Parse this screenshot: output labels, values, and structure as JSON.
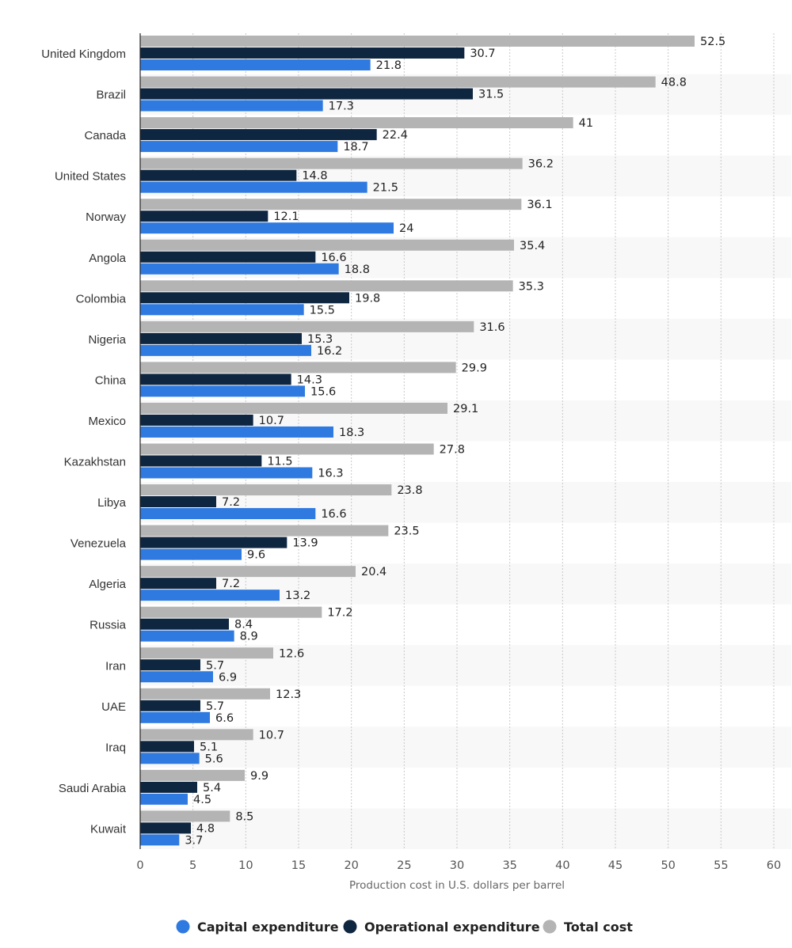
{
  "chart_data": {
    "type": "bar",
    "orientation": "horizontal",
    "categories": [
      "United Kingdom",
      "Brazil",
      "Canada",
      "United States",
      "Norway",
      "Angola",
      "Colombia",
      "Nigeria",
      "China",
      "Mexico",
      "Kazakhstan",
      "Libya",
      "Venezuela",
      "Algeria",
      "Russia",
      "Iran",
      "UAE",
      "Iraq",
      "Saudi Arabia",
      "Kuwait"
    ],
    "series": [
      {
        "name": "Total cost",
        "color": "#b4b4b4",
        "values": [
          52.5,
          48.8,
          41,
          36.2,
          36.1,
          35.4,
          35.3,
          31.6,
          29.9,
          29.1,
          27.8,
          23.8,
          23.5,
          20.4,
          17.2,
          12.6,
          12.3,
          10.7,
          9.9,
          8.5
        ]
      },
      {
        "name": "Operational expenditure",
        "color": "#0f2640",
        "values": [
          30.7,
          31.5,
          22.4,
          14.8,
          12.1,
          16.6,
          19.8,
          15.3,
          14.3,
          10.7,
          11.5,
          7.2,
          13.9,
          7.2,
          8.4,
          5.7,
          5.7,
          5.1,
          5.4,
          4.8
        ]
      },
      {
        "name": "Capital expenditure",
        "color": "#2f7ae0",
        "values": [
          21.8,
          17.3,
          18.7,
          21.5,
          24,
          18.8,
          15.5,
          16.2,
          15.6,
          18.3,
          16.3,
          16.6,
          9.6,
          13.2,
          8.9,
          6.9,
          6.6,
          5.6,
          4.5,
          3.7
        ]
      }
    ],
    "xlabel": "Production cost in U.S. dollars per barrel",
    "xlim": [
      0,
      60
    ],
    "xticks": [
      0,
      5,
      10,
      15,
      20,
      25,
      30,
      35,
      40,
      45,
      50,
      55,
      60
    ],
    "grid": true,
    "legend_position": "bottom",
    "legend": [
      {
        "label": "Capital expenditure",
        "color": "#2f7ae0"
      },
      {
        "label": "Operational expenditure",
        "color": "#0f2640"
      },
      {
        "label": "Total cost",
        "color": "#b4b4b4"
      }
    ]
  }
}
